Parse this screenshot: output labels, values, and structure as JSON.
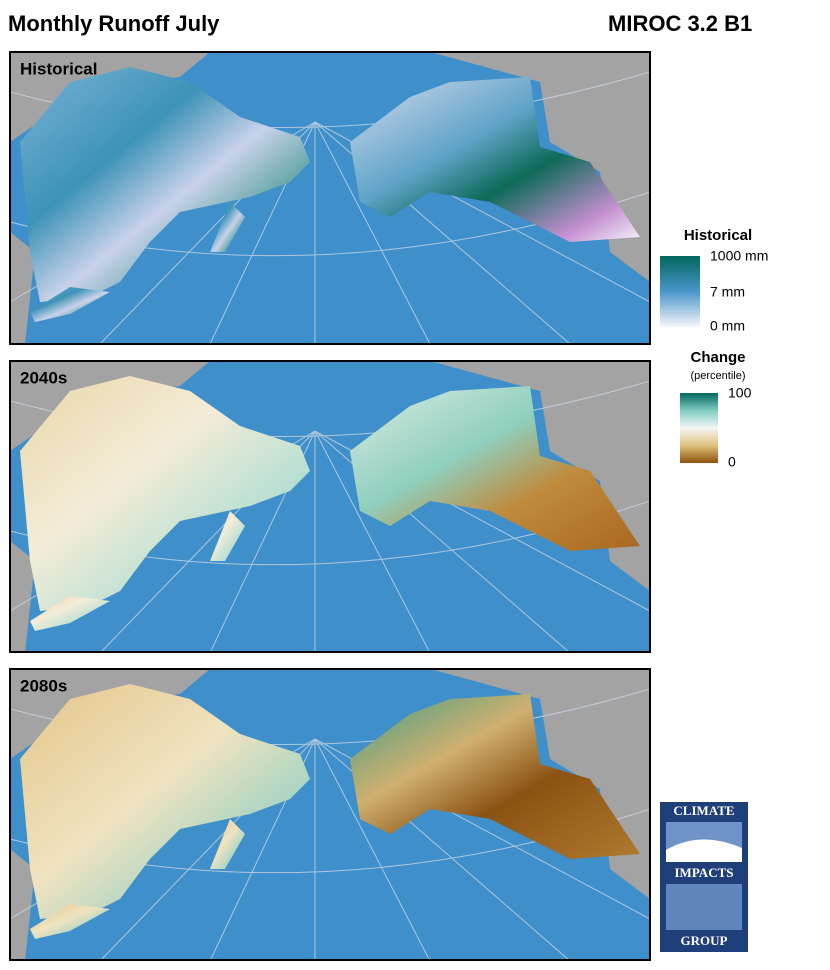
{
  "header": {
    "title": "Monthly Runoff July",
    "model": "MIROC 3.2 B1"
  },
  "panels": [
    {
      "label": "Historical"
    },
    {
      "label": "2040s"
    },
    {
      "label": "2080s"
    }
  ],
  "legends": [
    {
      "title": "Historical",
      "labels": [
        "1000 mm",
        "7 mm",
        "0 mm"
      ]
    },
    {
      "title": "Change",
      "subtitle": "(percentile)",
      "labels": [
        "100",
        "0"
      ]
    }
  ],
  "logo": {
    "lines": [
      "CLIMATE",
      "IMPACTS",
      "GROUP"
    ]
  }
}
